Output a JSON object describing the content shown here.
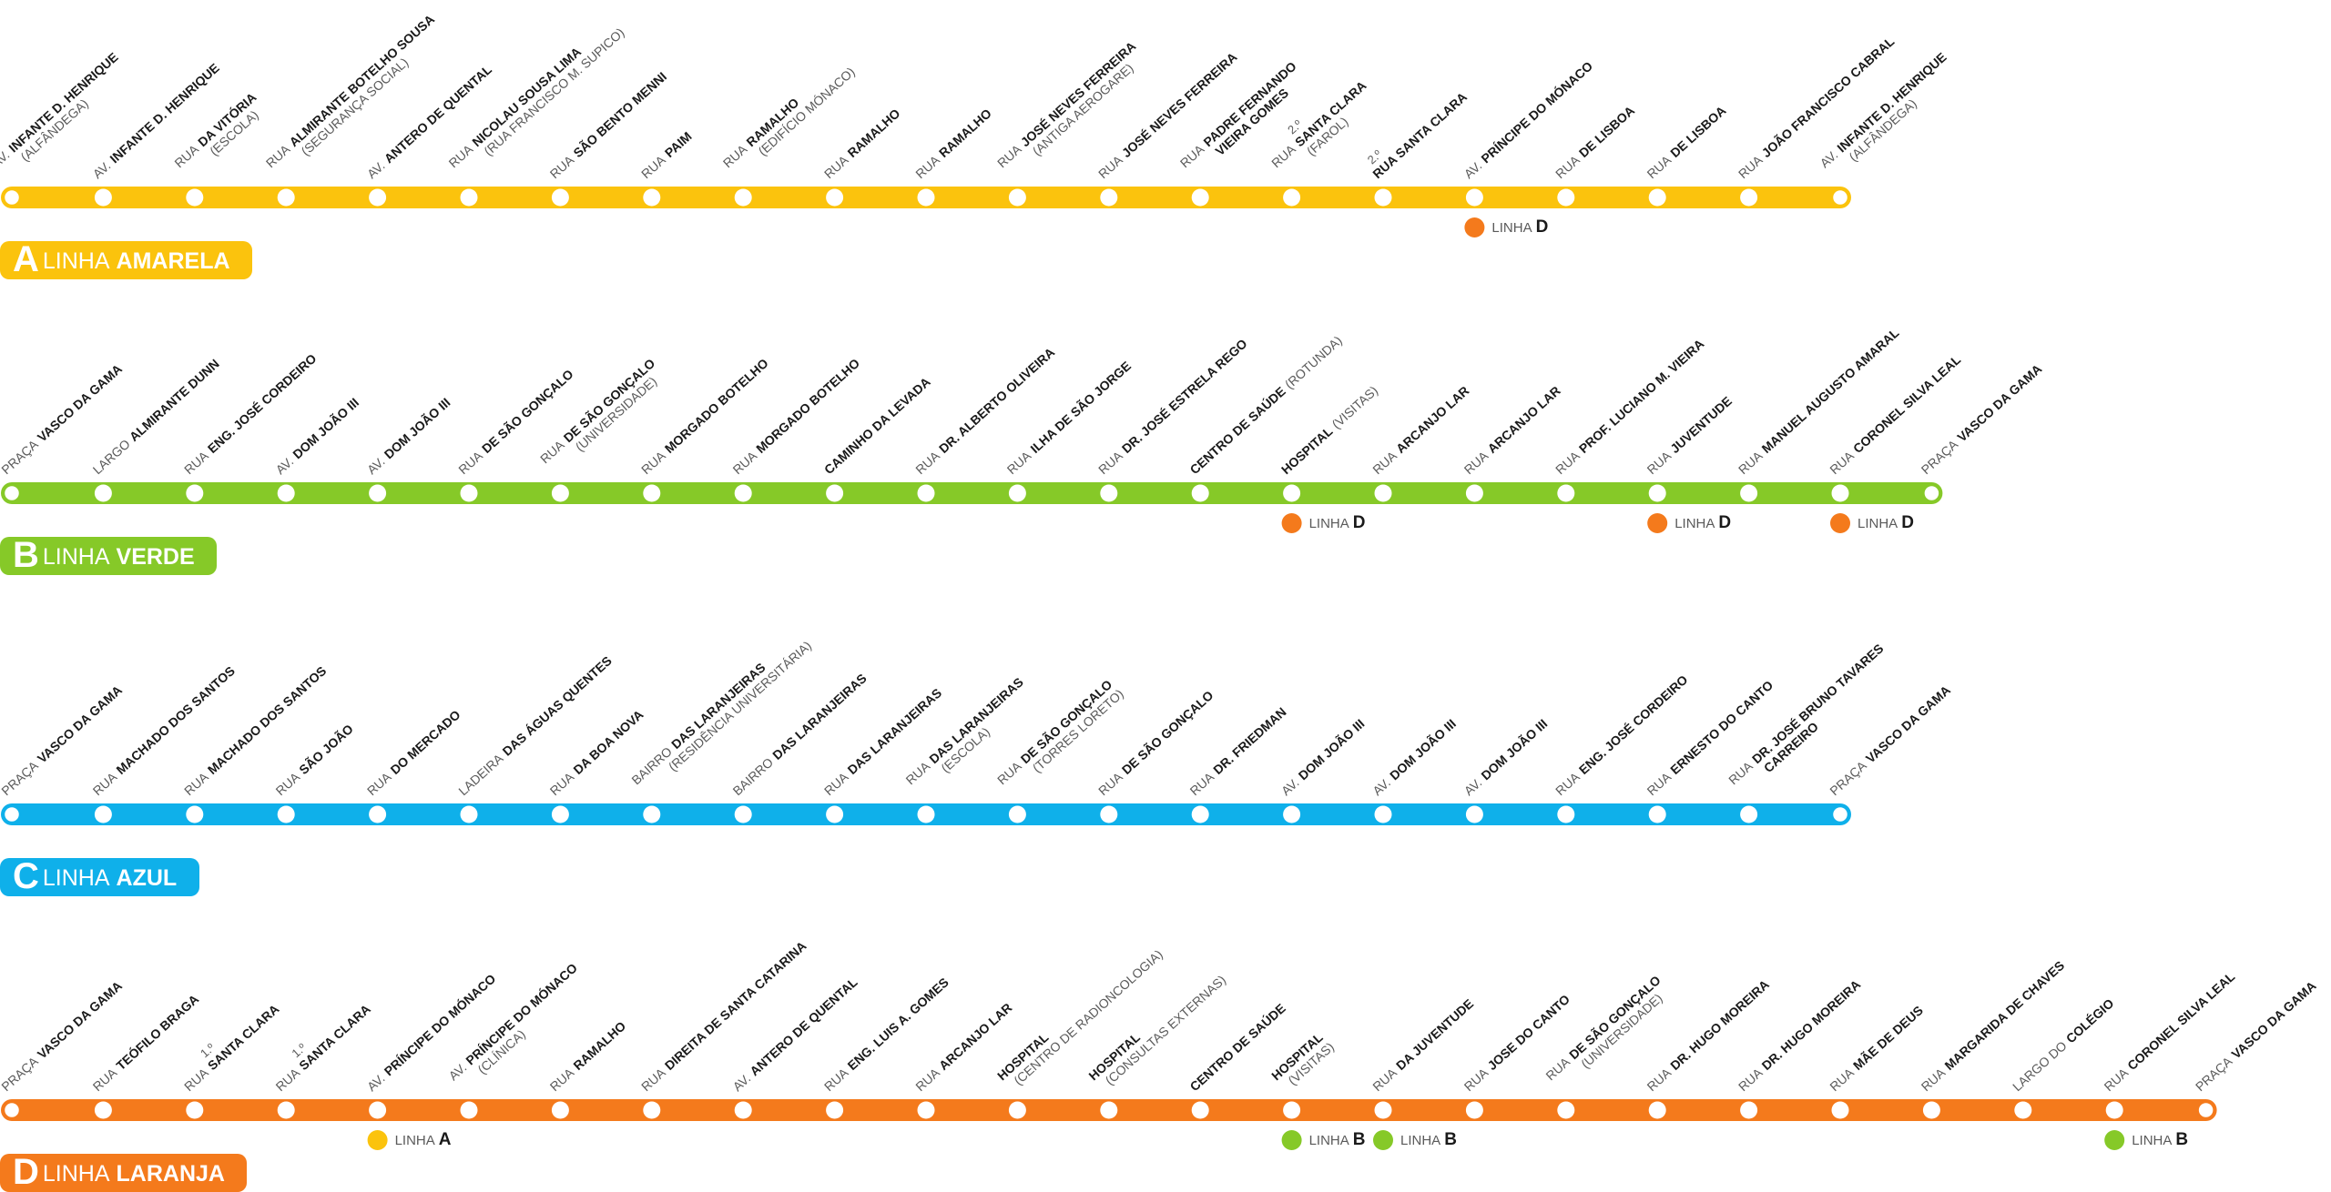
{
  "lines": [
    {
      "letter": "A",
      "prefix": "LINHA",
      "name": "AMARELA",
      "color": "#fbc30d",
      "stations": [
        {
          "prefix": "AV.",
          "name": "INFANTE D. HENRIQUE",
          "note": "(ALFÂNDEGA)"
        },
        {
          "prefix": "AV.",
          "name": "INFANTE D. HENRIQUE"
        },
        {
          "prefix": "RUA",
          "name": "DA VITÓRIA",
          "note": "(ESCOLA)"
        },
        {
          "prefix": "RUA",
          "name": "ALMIRANTE BOTELHO SOUSA",
          "note": "(SEGURANÇA SOCIAL)"
        },
        {
          "prefix": "AV.",
          "name": "ANTERO DE QUENTAL"
        },
        {
          "prefix": "RUA",
          "name": "NICOLAU SOUSA LIMA",
          "note": "(RUA FRANCISCO M. SUPICO)"
        },
        {
          "prefix": "RUA",
          "name": "SÃO BENTO MENNI"
        },
        {
          "prefix": "RUA",
          "name": "PAIM"
        },
        {
          "prefix": "RUA",
          "name": "RAMALHO",
          "note": "(EDIFÍCIO MÓNACO)"
        },
        {
          "prefix": "RUA",
          "name": "RAMALHO"
        },
        {
          "prefix": "RUA",
          "name": "RAMALHO"
        },
        {
          "prefix": "RUA",
          "name": "JOSÉ NEVES FERREIRA",
          "note": "(ANTIGA AEROGARE)"
        },
        {
          "prefix": "RUA",
          "name": "JOSÉ NEVES FERREIRA"
        },
        {
          "prefix": "RUA",
          "name": "PADRE FERNANDO",
          "note": "VIEIRA GOMES"
        },
        {
          "ordinal": "2.º",
          "prefix": "RUA",
          "name": "SANTA CLARA",
          "note": "(FAROL)"
        },
        {
          "ordinal": "2.º",
          "name": "RUA SANTA CLARA"
        },
        {
          "prefix": "AV.",
          "name": "PRÍNCIPE DO MÓNACO",
          "transfer": {
            "label": "LINHA",
            "line": "D"
          }
        },
        {
          "prefix": "RUA",
          "name": "DE LISBOA"
        },
        {
          "prefix": "RUA",
          "name": "DE LISBOA"
        },
        {
          "prefix": "RUA",
          "name": "JOÃO FRANCISCO CABRAL"
        },
        {
          "prefix": "AV.",
          "name": "INFANTE D. HENRIQUE",
          "note": "(ALFÂNDEGA)"
        }
      ]
    },
    {
      "letter": "B",
      "prefix": "LINHA",
      "name": "VERDE",
      "color": "#86c928",
      "stations": [
        {
          "prefix": "PRAÇA",
          "name": "VASCO DA GAMA"
        },
        {
          "prefix": "LARGO",
          "name": "ALMIRANTE DUNN"
        },
        {
          "prefix": "RUA",
          "name": "ENG. JOSÉ CORDEIRO"
        },
        {
          "prefix": "AV.",
          "name": "DOM JOÃO III"
        },
        {
          "prefix": "AV.",
          "name": "DOM JOÃO III"
        },
        {
          "prefix": "RUA",
          "name": "DE SÃO GONÇALO"
        },
        {
          "prefix": "RUA",
          "name": "DE SÃO GONÇALO",
          "note": "(UNIVERSIDADE)"
        },
        {
          "prefix": "RUA",
          "name": "MORGADO BOTELHO"
        },
        {
          "prefix": "RUA",
          "name": "MORGADO BOTELHO"
        },
        {
          "name": "CAMINHO DA LEVADA"
        },
        {
          "prefix": "RUA",
          "name": "DR. ALBERTO OLIVEIRA"
        },
        {
          "prefix": "RUA",
          "name": "ILHA DE SÃO JORGE"
        },
        {
          "prefix": "RUA",
          "name": "DR. JOSÉ ESTRELA REGO"
        },
        {
          "name": "CENTRO DE SAÚDE",
          "suffix": "(ROTUNDA)"
        },
        {
          "name": "HOSPITAL",
          "suffix": "(VISITAS)",
          "transfer": {
            "label": "LINHA",
            "line": "D"
          }
        },
        {
          "prefix": "RUA",
          "name": "ARCANJO LAR"
        },
        {
          "prefix": "RUA",
          "name": "ARCANJO LAR"
        },
        {
          "prefix": "RUA",
          "name": "PROF. LUCIANO M. VIEIRA"
        },
        {
          "prefix": "RUA",
          "name": "JUVENTUDE",
          "transfer": {
            "label": "LINHA",
            "line": "D"
          }
        },
        {
          "prefix": "RUA",
          "name": "MANUEL AUGUSTO AMARAL"
        },
        {
          "prefix": "RUA",
          "name": "CORONEL SILVA LEAL",
          "transfer": {
            "label": "LINHA",
            "line": "D"
          }
        },
        {
          "prefix": "PRAÇA",
          "name": "VASCO DA GAMA"
        }
      ]
    },
    {
      "letter": "C",
      "prefix": "LINHA",
      "name": "AZUL",
      "color": "#0fb0ea",
      "stations": [
        {
          "prefix": "PRAÇA",
          "name": "VASCO DA GAMA"
        },
        {
          "prefix": "RUA",
          "name": "MACHADO DOS SANTOS"
        },
        {
          "prefix": "RUA",
          "name": "MACHADO DOS SANTOS"
        },
        {
          "prefix": "RUA",
          "name": "SÃO JOÃO"
        },
        {
          "prefix": "RUA",
          "name": "DO MERCADO"
        },
        {
          "prefix": "LADEIRA",
          "name": "DAS ÁGUAS QUENTES"
        },
        {
          "prefix": "RUA",
          "name": "DA BOA NOVA"
        },
        {
          "prefix": "BAIRRO",
          "name": "DAS LARANJEIRAS",
          "note": "(RESIDÊNCIA UNIVERSITÁRIA)"
        },
        {
          "prefix": "BAIRRO",
          "name": "DAS LARANJEIRAS"
        },
        {
          "prefix": "RUA",
          "name": "DAS LARANJEIRAS"
        },
        {
          "prefix": "RUA",
          "name": "DAS LARANJEIRAS",
          "note": "(ESCOLA)"
        },
        {
          "prefix": "RUA",
          "name": "DE SÃO GONÇALO",
          "note": "(TORRES LORETO)"
        },
        {
          "prefix": "RUA",
          "name": "DE SÃO GONÇALO"
        },
        {
          "prefix": "RUA",
          "name": "DR. FRIEDMAN"
        },
        {
          "prefix": "AV.",
          "name": "DOM JOÃO III"
        },
        {
          "prefix": "AV.",
          "name": "DOM JOÃO III"
        },
        {
          "prefix": "AV.",
          "name": "DOM JOÃO III"
        },
        {
          "prefix": "RUA",
          "name": "ENG. JOSÉ CORDEIRO"
        },
        {
          "prefix": "RUA",
          "name": "ERNESTO DO CANTO"
        },
        {
          "prefix": "RUA",
          "name": "DR. JOSÉ BRUNO TAVARES",
          "note": "CARREIRO"
        },
        {
          "prefix": "PRAÇA",
          "name": "VASCO DA GAMA"
        }
      ]
    },
    {
      "letter": "D",
      "prefix": "LINHA",
      "name": "LARANJA",
      "color": "#f47a1c",
      "stations": [
        {
          "prefix": "PRAÇA",
          "name": "VASCO DA GAMA"
        },
        {
          "prefix": "RUA",
          "name": "TEÓFILO BRAGA"
        },
        {
          "ordinal": "1.º",
          "prefix": "RUA",
          "name": "SANTA CLARA"
        },
        {
          "ordinal": "1.º",
          "prefix": "RUA",
          "name": "SANTA CLARA"
        },
        {
          "prefix": "AV.",
          "name": "PRÍNCIPE DO MÓNACO",
          "transfer": {
            "label": "LINHA",
            "line": "A"
          }
        },
        {
          "prefix": "AV.",
          "name": "PRÍNCIPE DO MÓNACO",
          "note": "(CLÍNICA)"
        },
        {
          "prefix": "RUA",
          "name": "RAMALHO"
        },
        {
          "prefix": "RUA",
          "name": "DIREITA DE SANTA CATARINA"
        },
        {
          "prefix": "AV.",
          "name": "ANTERO DE QUENTAL"
        },
        {
          "prefix": "RUA",
          "name": "ENG. LUIS A. GOMES"
        },
        {
          "prefix": "RUA",
          "name": "ARCANJO LAR"
        },
        {
          "name": "HOSPITAL",
          "note": "(CENTRO DE RADIONCOLOGIA)"
        },
        {
          "name": "HOSPITAL",
          "note": "(CONSULTAS EXTERNAS)"
        },
        {
          "name": "CENTRO DE SAÚDE"
        },
        {
          "name": "HOSPITAL",
          "note": "(VISITAS)",
          "transfer": {
            "label": "LINHA",
            "line": "B"
          }
        },
        {
          "prefix": "RUA",
          "name": "DA JUVENTUDE",
          "transfer": {
            "label": "LINHA",
            "line": "B"
          }
        },
        {
          "prefix": "RUA",
          "name": "JOSE DO CANTO"
        },
        {
          "prefix": "RUA",
          "name": "DE SÃO GONÇALO",
          "note": "(UNIVERSIDADE)"
        },
        {
          "prefix": "RUA",
          "name": "DR. HUGO MOREIRA"
        },
        {
          "prefix": "RUA",
          "name": "DR. HUGO MOREIRA"
        },
        {
          "prefix": "RUA",
          "name": "MÃE DE DEUS"
        },
        {
          "prefix": "RUA",
          "name": "MARGARIDA DE CHAVES"
        },
        {
          "prefix": "LARGO DO",
          "name": "COLÉGIO"
        },
        {
          "prefix": "RUA",
          "name": "CORONEL SILVA LEAL",
          "transfer": {
            "label": "LINHA",
            "line": "B"
          }
        },
        {
          "prefix": "PRAÇA",
          "name": "VASCO DA GAMA"
        }
      ]
    }
  ]
}
